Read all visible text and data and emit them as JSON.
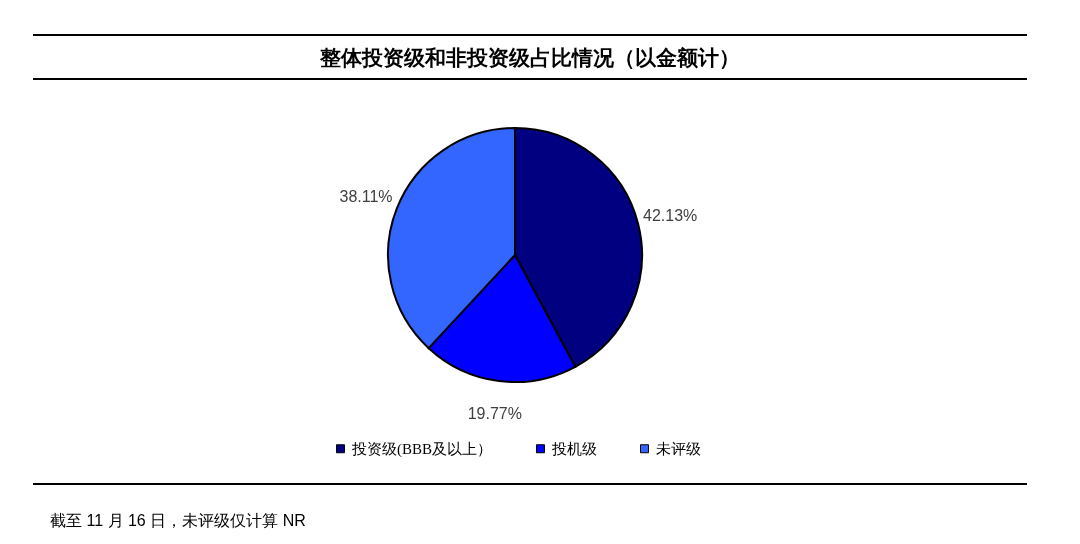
{
  "chart_data": {
    "type": "pie",
    "title": "整体投资级和非投资级占比情况（以金额计）",
    "categories": [
      "投资级(BBB及以上）",
      "投机级",
      "未评级"
    ],
    "values": [
      42.13,
      19.77,
      38.11
    ],
    "colors": [
      "#000080",
      "#0000ff",
      "#3366ff"
    ],
    "value_labels": [
      "42.13%",
      "19.77%",
      "38.11%"
    ],
    "legend": "bottom",
    "annotations": [
      "截至 11 月 16 日，未评级仅计算 NR"
    ]
  }
}
